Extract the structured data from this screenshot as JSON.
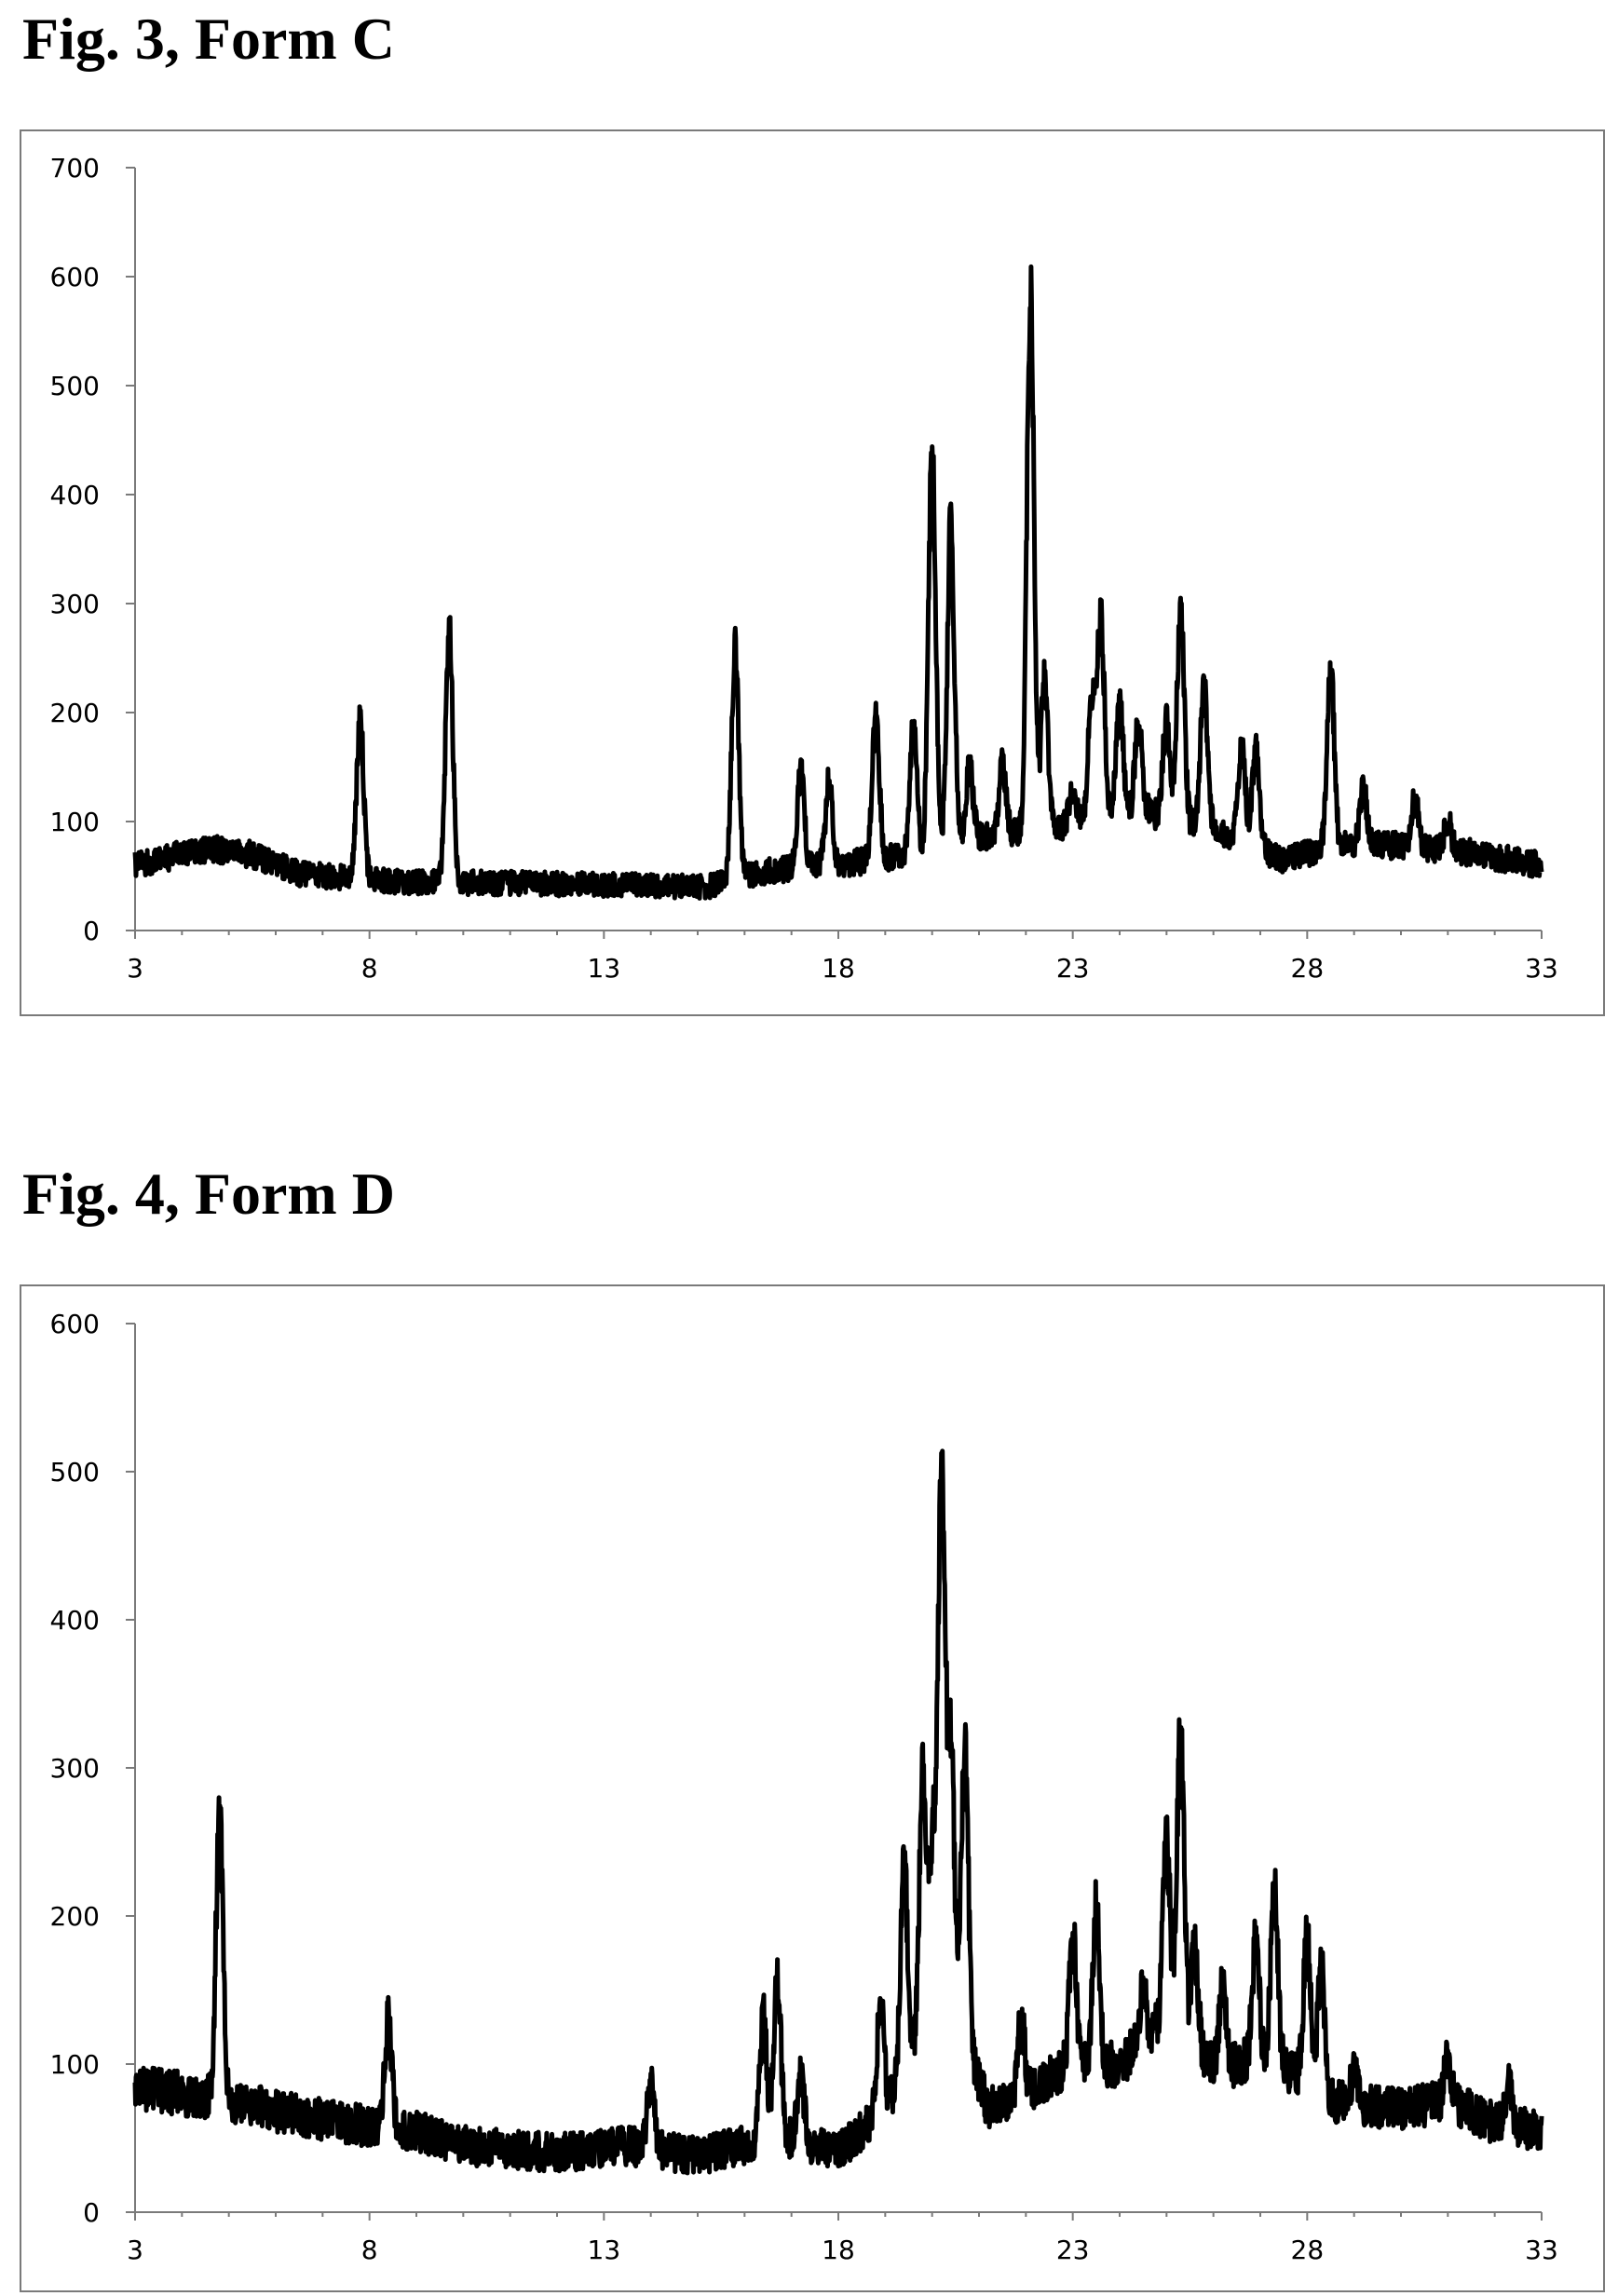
{
  "figures": [
    {
      "title": "Fig. 3, Form C"
    },
    {
      "title": "Fig. 4, Form D"
    }
  ],
  "chart_data": [
    {
      "type": "line",
      "title": "Fig. 3, Form C",
      "xlabel": "",
      "ylabel": "",
      "xlim": [
        3,
        33
      ],
      "ylim": [
        0,
        700
      ],
      "xticks": [
        3,
        8,
        13,
        18,
        23,
        28,
        33
      ],
      "yticks": [
        0,
        100,
        200,
        300,
        400,
        500,
        600,
        700
      ],
      "grid": false,
      "legend": "none",
      "line_color": "#000000",
      "baseline": [
        [
          3,
          60
        ],
        [
          4.5,
          75
        ],
        [
          5.5,
          70
        ],
        [
          6.5,
          52
        ],
        [
          8.5,
          45
        ],
        [
          13,
          42
        ],
        [
          15.2,
          40
        ],
        [
          16.5,
          55
        ],
        [
          18,
          60
        ],
        [
          19.5,
          70
        ],
        [
          21,
          85
        ],
        [
          23,
          95
        ],
        [
          24.5,
          110
        ],
        [
          26.5,
          85
        ],
        [
          27.5,
          65
        ],
        [
          29,
          80
        ],
        [
          31,
          75
        ],
        [
          33,
          60
        ]
      ],
      "peaks": [
        {
          "x": 7.8,
          "y": 195
        },
        {
          "x": 9.7,
          "y": 278
        },
        {
          "x": 15.8,
          "y": 257
        },
        {
          "x": 17.2,
          "y": 145
        },
        {
          "x": 17.8,
          "y": 136
        },
        {
          "x": 18.8,
          "y": 195
        },
        {
          "x": 19.6,
          "y": 185
        },
        {
          "x": 20.0,
          "y": 440
        },
        {
          "x": 20.4,
          "y": 372
        },
        {
          "x": 20.8,
          "y": 150
        },
        {
          "x": 21.5,
          "y": 155
        },
        {
          "x": 22.1,
          "y": 595
        },
        {
          "x": 22.4,
          "y": 230
        },
        {
          "x": 23.0,
          "y": 130
        },
        {
          "x": 23.4,
          "y": 215
        },
        {
          "x": 23.6,
          "y": 285
        },
        {
          "x": 24.0,
          "y": 205
        },
        {
          "x": 24.4,
          "y": 190
        },
        {
          "x": 25.0,
          "y": 195
        },
        {
          "x": 25.3,
          "y": 297
        },
        {
          "x": 25.8,
          "y": 222
        },
        {
          "x": 26.6,
          "y": 170
        },
        {
          "x": 26.9,
          "y": 165
        },
        {
          "x": 28.5,
          "y": 240
        },
        {
          "x": 29.2,
          "y": 130
        },
        {
          "x": 30.3,
          "y": 120
        },
        {
          "x": 31.0,
          "y": 100
        }
      ]
    },
    {
      "type": "line",
      "title": "Fig. 4, Form D",
      "xlabel": "",
      "ylabel": "",
      "xlim": [
        3,
        33
      ],
      "ylim": [
        0,
        600
      ],
      "xticks": [
        3,
        8,
        13,
        18,
        23,
        28,
        33
      ],
      "yticks": [
        0,
        100,
        200,
        300,
        400,
        500,
        600
      ],
      "grid": false,
      "legend": "none",
      "line_color": "#000000",
      "baseline": [
        [
          3,
          85
        ],
        [
          4,
          80
        ],
        [
          5,
          75
        ],
        [
          6.5,
          65
        ],
        [
          8,
          58
        ],
        [
          9,
          55
        ],
        [
          10,
          45
        ],
        [
          12,
          40
        ],
        [
          13.5,
          45
        ],
        [
          15,
          38
        ],
        [
          16,
          45
        ],
        [
          17,
          50
        ],
        [
          18,
          40
        ],
        [
          19,
          70
        ],
        [
          20,
          130
        ],
        [
          20.6,
          125
        ],
        [
          21.2,
          70
        ],
        [
          22,
          80
        ],
        [
          23,
          100
        ],
        [
          24,
          100
        ],
        [
          25,
          130
        ],
        [
          25.6,
          110
        ],
        [
          26.2,
          95
        ],
        [
          27,
          105
        ],
        [
          28,
          90
        ],
        [
          28.5,
          75
        ],
        [
          30,
          70
        ],
        [
          31,
          75
        ],
        [
          32,
          60
        ],
        [
          33,
          55
        ]
      ],
      "peaks": [
        {
          "x": 4.8,
          "y": 265
        },
        {
          "x": 8.4,
          "y": 128
        },
        {
          "x": 14.0,
          "y": 85
        },
        {
          "x": 16.4,
          "y": 130
        },
        {
          "x": 16.7,
          "y": 157
        },
        {
          "x": 17.2,
          "y": 90
        },
        {
          "x": 18.9,
          "y": 140
        },
        {
          "x": 19.4,
          "y": 235
        },
        {
          "x": 19.8,
          "y": 290
        },
        {
          "x": 20.0,
          "y": 245
        },
        {
          "x": 20.2,
          "y": 500
        },
        {
          "x": 20.4,
          "y": 310
        },
        {
          "x": 20.7,
          "y": 310
        },
        {
          "x": 21.9,
          "y": 130
        },
        {
          "x": 23.0,
          "y": 187
        },
        {
          "x": 23.5,
          "y": 205
        },
        {
          "x": 24.5,
          "y": 150
        },
        {
          "x": 25.0,
          "y": 250
        },
        {
          "x": 25.3,
          "y": 327
        },
        {
          "x": 25.6,
          "y": 175
        },
        {
          "x": 26.2,
          "y": 150
        },
        {
          "x": 26.9,
          "y": 180
        },
        {
          "x": 27.3,
          "y": 220
        },
        {
          "x": 28.0,
          "y": 185
        },
        {
          "x": 28.3,
          "y": 165
        },
        {
          "x": 29.0,
          "y": 95
        },
        {
          "x": 31.0,
          "y": 105
        },
        {
          "x": 32.3,
          "y": 85
        }
      ]
    }
  ]
}
